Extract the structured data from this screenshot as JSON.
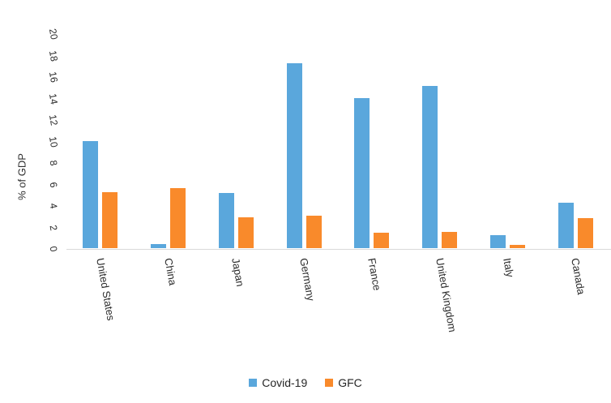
{
  "chart_data": {
    "type": "bar",
    "title": "",
    "xlabel": "",
    "ylabel": "% of GDP",
    "categories": [
      "United States",
      "China",
      "Japan",
      "Germany",
      "France",
      "United Kingdom",
      "Italy",
      "Canada"
    ],
    "series": [
      {
        "name": "Covid-19",
        "color": "#5AA7DC",
        "values": [
          10.0,
          0.4,
          5.1,
          17.2,
          14.0,
          15.1,
          1.2,
          4.2
        ]
      },
      {
        "name": "GFC",
        "color": "#F98A2B",
        "values": [
          5.2,
          5.6,
          2.9,
          3.0,
          1.4,
          1.5,
          0.3,
          2.8
        ]
      }
    ],
    "ylim": [
      0,
      20
    ],
    "yticks": [
      0,
      2,
      4,
      6,
      8,
      10,
      12,
      14,
      16,
      18,
      20
    ],
    "grid": false,
    "legend_position": "bottom",
    "axis_color": "#D9D9D9",
    "text_color": "#2b2b2b"
  }
}
